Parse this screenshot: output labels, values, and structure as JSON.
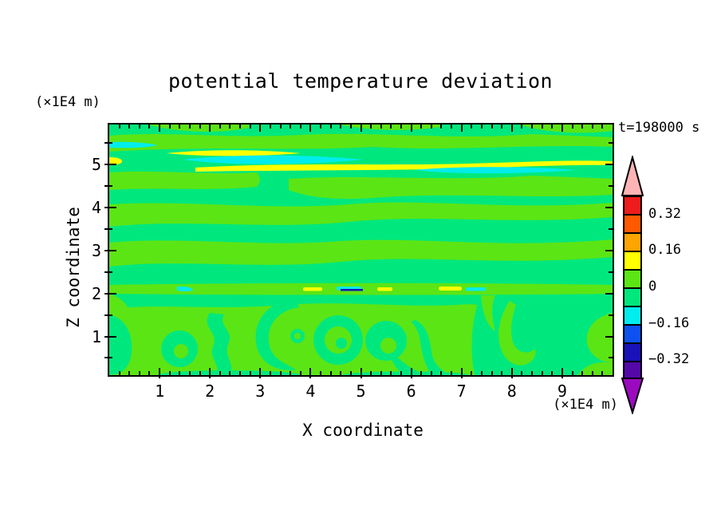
{
  "window": {
    "background": "#ffffff"
  },
  "title": "potential temperature deviation",
  "annotations": {
    "time_label": "t=198000 s",
    "z_axis_unit": "(×1E4 m)",
    "x_axis_unit": "(×1E4 m)"
  },
  "axes": {
    "x_label": "X coordinate",
    "z_label": "Z coordinate",
    "x_ticks": [
      "1",
      "2",
      "3",
      "4",
      "5",
      "6",
      "7",
      "8",
      "9"
    ],
    "z_ticks": [
      "1",
      "2",
      "3",
      "4",
      "5"
    ]
  },
  "colorbar": {
    "segment_colors": [
      "#ee1c1c",
      "#ff5a00",
      "#ffa400",
      "#ffff00",
      "#5ce514",
      "#00e87d",
      "#00eded",
      "#0d52f0",
      "#1a12b8",
      "#5408a8"
    ],
    "over_arrow_color": "#ffb3b5",
    "under_arrow_color": "#9c0ac0",
    "labels": [
      {
        "text": "0.32",
        "boundary": 1
      },
      {
        "text": "0.16",
        "boundary": 3
      },
      {
        "text": "0",
        "boundary": 5
      },
      {
        "text": "−0.16",
        "boundary": 7
      },
      {
        "text": "−0.32",
        "boundary": 9
      }
    ]
  },
  "chart_data": {
    "type": "contour",
    "title": "potential temperature deviation",
    "xlabel": "X coordinate",
    "ylabel": "Z coordinate",
    "x_unit": "(×1E4 m)",
    "z_unit": "(×1E4 m)",
    "time_annotation": "t=198000 s",
    "xlim": [
      0,
      10
    ],
    "zlim": [
      0,
      5.9
    ],
    "x_major_ticks": [
      1,
      2,
      3,
      4,
      5,
      6,
      7,
      8,
      9
    ],
    "x_minor_tick_step": 0.2,
    "z_major_ticks": [
      1,
      2,
      3,
      4,
      5
    ],
    "z_minor_tick_step": 0.5,
    "contour_interval": 0.08,
    "levels": [
      -0.4,
      -0.32,
      -0.24,
      -0.16,
      -0.08,
      0,
      0.08,
      0.16,
      0.24,
      0.32,
      0.4
    ],
    "palette_low_to_high": [
      "#9c0ac0",
      "#5408a8",
      "#1a12b8",
      "#0d52f0",
      "#00eded",
      "#00e87d",
      "#5ce514",
      "#ffff00",
      "#ffa400",
      "#ff5a00",
      "#ee1c1c",
      "#ffb3b5"
    ],
    "legend_labeled_levels": [
      0.32,
      0.16,
      0,
      -0.16,
      -0.32
    ],
    "field_description": {
      "dominant_range": "most of the domain is between -0.08 and +0.08 (the two green bands)",
      "upper_region": "horizontally stratified wavy streaks for z>2.2; thin yellow (0.08 to 0.16) and cyan (-0.16 to -0.08) filaments near z=5.0-5.4",
      "filament_line": "thin mixed filament line (yellow/cyan/dark-blue dashes) across the full width near z=2.05",
      "lower_region": "Kelvin-Helmholtz-like vortex swirls, rings and curls for z<2"
    }
  }
}
